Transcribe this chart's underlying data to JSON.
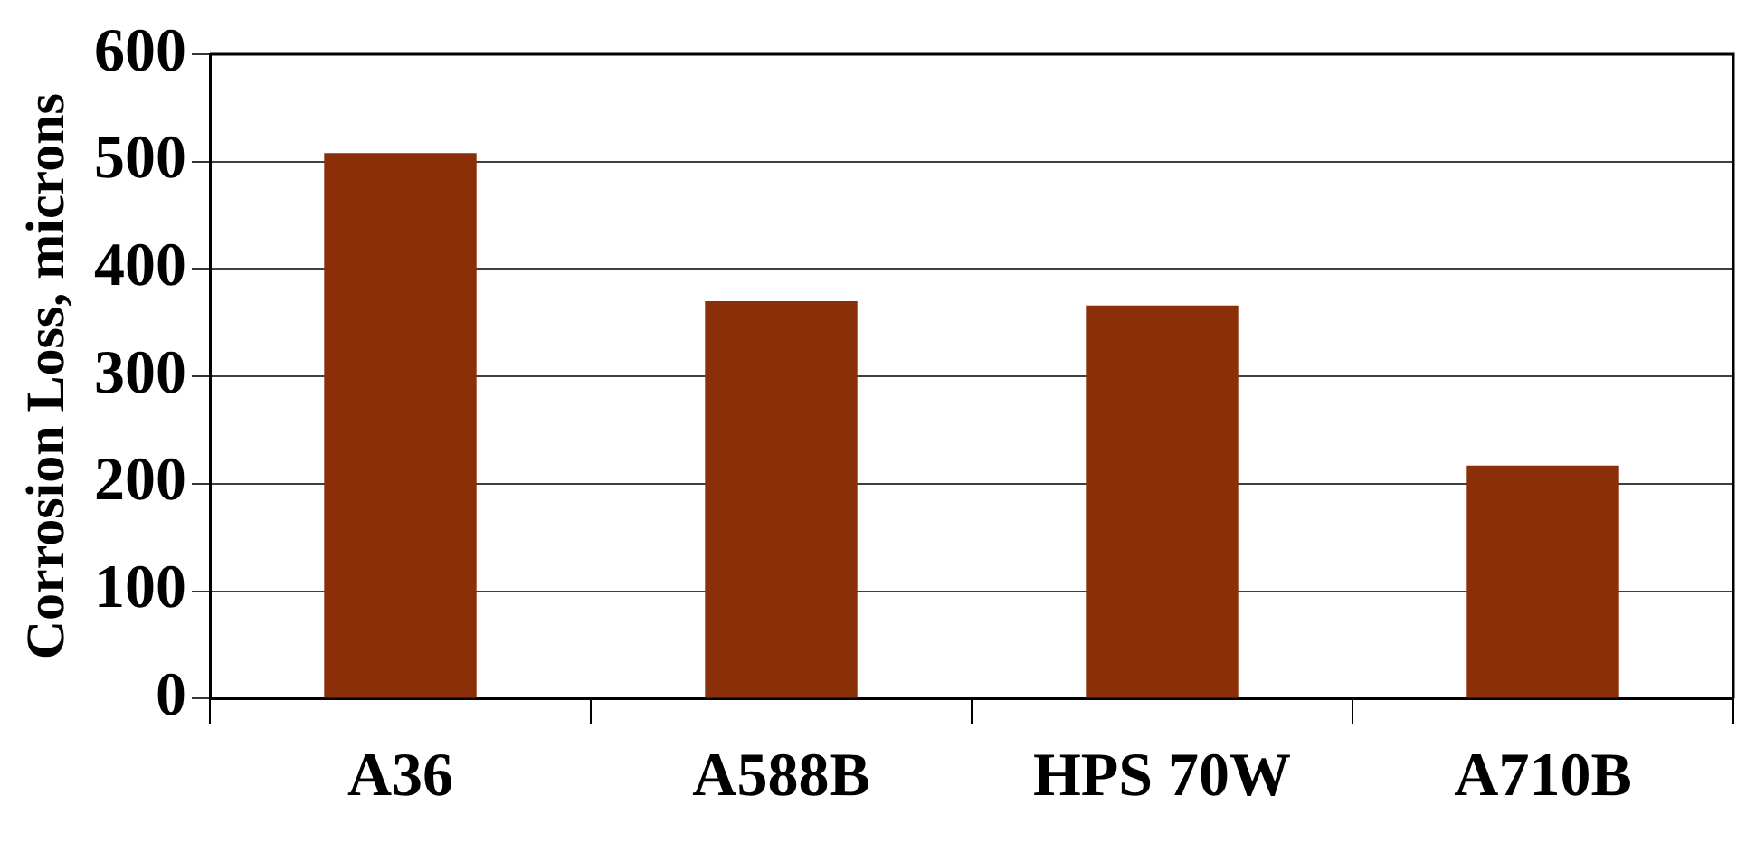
{
  "chart_data": {
    "type": "bar",
    "ylabel": "Corrosion Loss, microns",
    "categories": [
      "A36",
      "A588B",
      "HPS 70W",
      "A710B"
    ],
    "values": [
      508,
      370,
      366,
      217
    ],
    "color": "#8a2f08",
    "ylim": [
      0,
      600
    ],
    "yticks": [
      0,
      100,
      200,
      300,
      400,
      500,
      600
    ],
    "grid": "y",
    "legend": false
  }
}
